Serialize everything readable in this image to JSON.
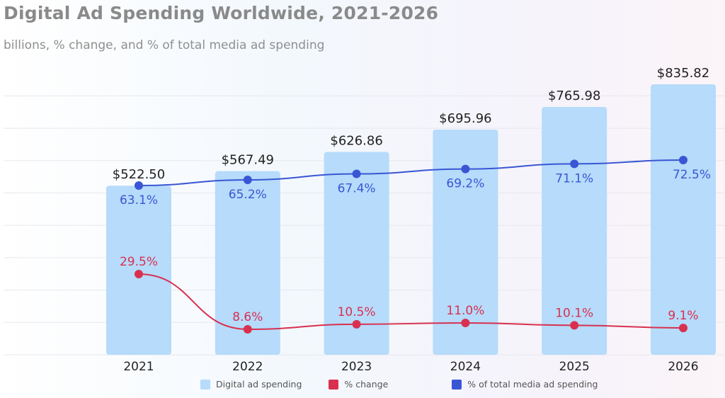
{
  "title": "Digital Ad Spending Worldwide, 2021-2026",
  "subtitle": "billions, % change, and % of total media ad spending",
  "chart_data": {
    "type": "bar",
    "categories": [
      "2021",
      "2022",
      "2023",
      "2024",
      "2025",
      "2026"
    ],
    "ylim": [
      0,
      800
    ],
    "grid": true,
    "legend_placement": "bottom",
    "series": [
      {
        "name": "Digital ad spending",
        "type": "bar",
        "color": "#b6dbfb",
        "values": [
          522.5,
          567.49,
          626.86,
          695.96,
          765.98,
          835.82
        ],
        "labels": [
          "$522.50",
          "$567.49",
          "$626.86",
          "$695.96",
          "$765.98",
          "$835.82"
        ]
      },
      {
        "name": "% change",
        "type": "line",
        "color": "#d9304f",
        "values": [
          29.5,
          8.6,
          10.5,
          11.0,
          10.1,
          9.1
        ],
        "labels": [
          "29.5%",
          "8.6%",
          "10.5%",
          "11.0%",
          "10.1%",
          "9.1%"
        ]
      },
      {
        "name": "% of total media ad spending",
        "type": "line",
        "color": "#3a56d4",
        "values": [
          63.1,
          65.2,
          67.4,
          69.2,
          71.1,
          72.5
        ],
        "labels": [
          "63.1%",
          "65.2%",
          "67.4%",
          "69.2%",
          "71.1%",
          "72.5%"
        ]
      }
    ]
  }
}
